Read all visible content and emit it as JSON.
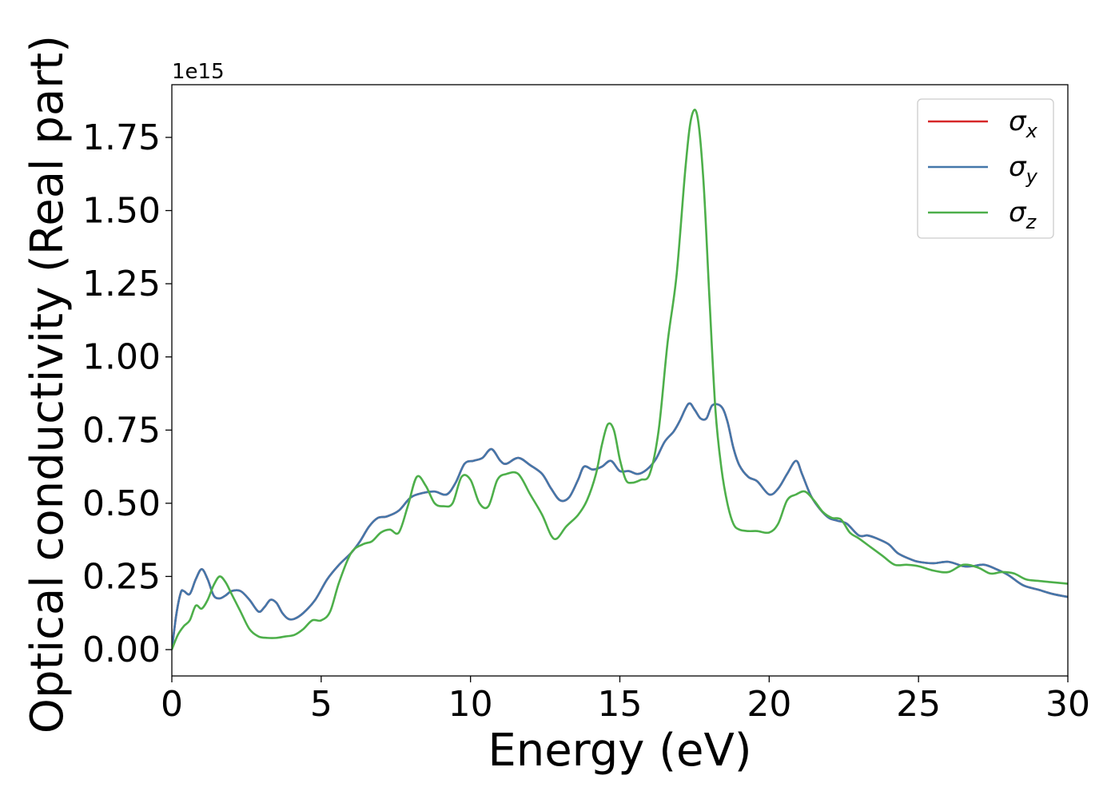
{
  "chart_data": {
    "type": "line",
    "title": "",
    "xlabel": "Energy (eV)",
    "ylabel": "Optical conductivity (Real part)",
    "y_offset_label": "1e15",
    "xlim": [
      0,
      30
    ],
    "ylim": [
      -0.09,
      1.93
    ],
    "xticks": [
      0,
      5,
      10,
      15,
      20,
      25,
      30
    ],
    "xtick_labels": [
      "0",
      "5",
      "10",
      "15",
      "20",
      "25",
      "30"
    ],
    "yticks": [
      0,
      0.25,
      0.5,
      0.75,
      1.0,
      1.25,
      1.5,
      1.75
    ],
    "ytick_labels": [
      "0.00",
      "0.25",
      "0.50",
      "0.75",
      "1.00",
      "1.25",
      "1.50",
      "1.75"
    ],
    "grid": false,
    "legend_position": "top-right",
    "series": [
      {
        "name": "σx",
        "symbol": "σ",
        "subscript": "x",
        "color": "#d62728",
        "x": [
          0,
          0.15,
          0.3,
          0.4,
          0.6,
          0.8,
          1.0,
          1.2,
          1.4,
          1.6,
          1.8,
          2.0,
          2.3,
          2.6,
          2.9,
          3.1,
          3.3,
          3.5,
          3.7,
          3.9,
          4.1,
          4.4,
          4.8,
          5.2,
          5.6,
          6.0,
          6.3,
          6.6,
          6.9,
          7.2,
          7.6,
          8.0,
          8.4,
          8.8,
          9.2,
          9.5,
          9.8,
          10.1,
          10.4,
          10.7,
          11.0,
          11.2,
          11.6,
          12.0,
          12.4,
          12.7,
          13.0,
          13.3,
          13.6,
          13.8,
          14.1,
          14.4,
          14.7,
          15.0,
          15.3,
          15.6,
          15.9,
          16.2,
          16.5,
          16.8,
          17.0,
          17.3,
          17.5,
          17.7,
          17.9,
          18.1,
          18.4,
          18.6,
          18.8,
          19.0,
          19.3,
          19.6,
          20.0,
          20.3,
          20.6,
          20.9,
          21.1,
          21.4,
          21.7,
          22.0,
          22.3,
          22.6,
          23.0,
          23.3,
          23.6,
          24.0,
          24.3,
          24.7,
          25.0,
          25.5,
          26.0,
          26.5,
          26.8,
          27.2,
          27.6,
          28.0,
          28.5,
          29.0,
          29.5,
          30.0
        ],
        "values": [
          0,
          0.12,
          0.195,
          0.2,
          0.19,
          0.24,
          0.275,
          0.24,
          0.185,
          0.175,
          0.185,
          0.2,
          0.2,
          0.17,
          0.13,
          0.145,
          0.17,
          0.16,
          0.125,
          0.105,
          0.105,
          0.125,
          0.17,
          0.24,
          0.29,
          0.33,
          0.37,
          0.42,
          0.45,
          0.455,
          0.475,
          0.52,
          0.535,
          0.54,
          0.53,
          0.57,
          0.635,
          0.645,
          0.655,
          0.685,
          0.645,
          0.635,
          0.655,
          0.63,
          0.6,
          0.55,
          0.51,
          0.52,
          0.58,
          0.625,
          0.615,
          0.625,
          0.645,
          0.61,
          0.61,
          0.6,
          0.615,
          0.65,
          0.71,
          0.745,
          0.78,
          0.84,
          0.82,
          0.79,
          0.79,
          0.835,
          0.83,
          0.78,
          0.69,
          0.63,
          0.59,
          0.575,
          0.53,
          0.55,
          0.6,
          0.645,
          0.6,
          0.525,
          0.48,
          0.45,
          0.44,
          0.43,
          0.39,
          0.39,
          0.38,
          0.36,
          0.33,
          0.31,
          0.3,
          0.295,
          0.3,
          0.285,
          0.285,
          0.29,
          0.275,
          0.255,
          0.22,
          0.205,
          0.19,
          0.18
        ]
      },
      {
        "name": "σy",
        "symbol": "σ",
        "subscript": "y",
        "color": "#4477aa",
        "x": [
          0,
          0.15,
          0.3,
          0.4,
          0.6,
          0.8,
          1.0,
          1.2,
          1.4,
          1.6,
          1.8,
          2.0,
          2.3,
          2.6,
          2.9,
          3.1,
          3.3,
          3.5,
          3.7,
          3.9,
          4.1,
          4.4,
          4.8,
          5.2,
          5.6,
          6.0,
          6.3,
          6.6,
          6.9,
          7.2,
          7.6,
          8.0,
          8.4,
          8.8,
          9.2,
          9.5,
          9.8,
          10.1,
          10.4,
          10.7,
          11.0,
          11.2,
          11.6,
          12.0,
          12.4,
          12.7,
          13.0,
          13.3,
          13.6,
          13.8,
          14.1,
          14.4,
          14.7,
          15.0,
          15.3,
          15.6,
          15.9,
          16.2,
          16.5,
          16.8,
          17.0,
          17.3,
          17.5,
          17.7,
          17.9,
          18.1,
          18.4,
          18.6,
          18.8,
          19.0,
          19.3,
          19.6,
          20.0,
          20.3,
          20.6,
          20.9,
          21.1,
          21.4,
          21.7,
          22.0,
          22.3,
          22.6,
          23.0,
          23.3,
          23.6,
          24.0,
          24.3,
          24.7,
          25.0,
          25.5,
          26.0,
          26.5,
          26.8,
          27.2,
          27.6,
          28.0,
          28.5,
          29.0,
          29.5,
          30.0
        ],
        "values": [
          0,
          0.12,
          0.195,
          0.2,
          0.19,
          0.24,
          0.275,
          0.24,
          0.185,
          0.175,
          0.185,
          0.2,
          0.2,
          0.17,
          0.13,
          0.145,
          0.17,
          0.16,
          0.125,
          0.105,
          0.105,
          0.125,
          0.17,
          0.24,
          0.29,
          0.33,
          0.37,
          0.42,
          0.45,
          0.455,
          0.475,
          0.52,
          0.535,
          0.54,
          0.53,
          0.57,
          0.635,
          0.645,
          0.655,
          0.685,
          0.645,
          0.635,
          0.655,
          0.63,
          0.6,
          0.55,
          0.51,
          0.52,
          0.58,
          0.625,
          0.615,
          0.625,
          0.645,
          0.61,
          0.61,
          0.6,
          0.615,
          0.65,
          0.71,
          0.745,
          0.78,
          0.84,
          0.82,
          0.79,
          0.79,
          0.835,
          0.83,
          0.78,
          0.69,
          0.63,
          0.59,
          0.575,
          0.53,
          0.55,
          0.6,
          0.645,
          0.6,
          0.525,
          0.48,
          0.45,
          0.44,
          0.43,
          0.39,
          0.39,
          0.38,
          0.36,
          0.33,
          0.31,
          0.3,
          0.295,
          0.3,
          0.285,
          0.285,
          0.29,
          0.275,
          0.255,
          0.22,
          0.205,
          0.19,
          0.18
        ]
      },
      {
        "name": "σz",
        "symbol": "σ",
        "subscript": "z",
        "color": "#4daf4a",
        "x": [
          0,
          0.2,
          0.4,
          0.6,
          0.8,
          1.0,
          1.2,
          1.4,
          1.6,
          1.8,
          2.0,
          2.3,
          2.6,
          2.9,
          3.2,
          3.5,
          3.8,
          4.1,
          4.4,
          4.7,
          5.0,
          5.3,
          5.6,
          6.0,
          6.4,
          6.7,
          7.0,
          7.3,
          7.6,
          7.9,
          8.2,
          8.5,
          8.8,
          9.1,
          9.4,
          9.7,
          10.0,
          10.3,
          10.6,
          10.9,
          11.2,
          11.6,
          12.0,
          12.4,
          12.7,
          12.9,
          13.2,
          13.6,
          13.9,
          14.2,
          14.4,
          14.6,
          14.8,
          15.0,
          15.2,
          15.4,
          15.7,
          16.0,
          16.3,
          16.6,
          16.9,
          17.2,
          17.4,
          17.6,
          17.8,
          18.0,
          18.2,
          18.4,
          18.6,
          18.8,
          19.0,
          19.3,
          19.6,
          20.0,
          20.3,
          20.6,
          20.9,
          21.2,
          21.5,
          21.8,
          22.1,
          22.4,
          22.7,
          23.0,
          23.4,
          23.8,
          24.2,
          24.6,
          25.0,
          25.5,
          26.0,
          26.5,
          27.0,
          27.4,
          27.8,
          28.2,
          28.6,
          29.0,
          29.5,
          30.0
        ],
        "values": [
          0,
          0.05,
          0.08,
          0.1,
          0.15,
          0.14,
          0.17,
          0.22,
          0.25,
          0.23,
          0.19,
          0.13,
          0.07,
          0.045,
          0.04,
          0.04,
          0.045,
          0.05,
          0.07,
          0.1,
          0.1,
          0.13,
          0.23,
          0.33,
          0.36,
          0.37,
          0.4,
          0.41,
          0.4,
          0.49,
          0.59,
          0.56,
          0.5,
          0.49,
          0.5,
          0.59,
          0.58,
          0.5,
          0.49,
          0.58,
          0.6,
          0.6,
          0.53,
          0.46,
          0.39,
          0.38,
          0.42,
          0.46,
          0.51,
          0.6,
          0.7,
          0.77,
          0.75,
          0.65,
          0.58,
          0.57,
          0.58,
          0.6,
          0.75,
          1.05,
          1.28,
          1.65,
          1.82,
          1.82,
          1.6,
          1.2,
          0.82,
          0.62,
          0.5,
          0.43,
          0.41,
          0.405,
          0.405,
          0.4,
          0.43,
          0.51,
          0.53,
          0.54,
          0.51,
          0.47,
          0.45,
          0.445,
          0.4,
          0.38,
          0.35,
          0.32,
          0.29,
          0.29,
          0.285,
          0.27,
          0.265,
          0.29,
          0.28,
          0.26,
          0.265,
          0.26,
          0.24,
          0.235,
          0.23,
          0.225
        ]
      }
    ]
  }
}
